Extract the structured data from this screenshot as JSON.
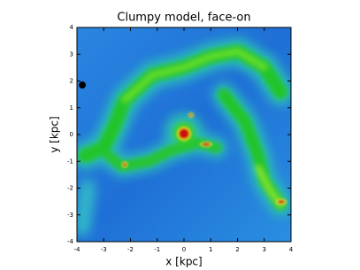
{
  "chart_data": {
    "type": "image",
    "title": "Clumpy model, face-on",
    "xlabel": "x [kpc]",
    "ylabel": "y [kpc]",
    "xlim": [
      -4,
      4
    ],
    "ylim": [
      -4,
      4
    ],
    "xticks": [
      -4,
      -3,
      -2,
      -1,
      0,
      1,
      2,
      3,
      4
    ],
    "yticks": [
      -4,
      -3,
      -2,
      -1,
      0,
      1,
      2,
      3,
      4
    ],
    "markers": {
      "x": [
        -3.8
      ],
      "y": [
        1.85
      ],
      "color": "#000000"
    }
  }
}
